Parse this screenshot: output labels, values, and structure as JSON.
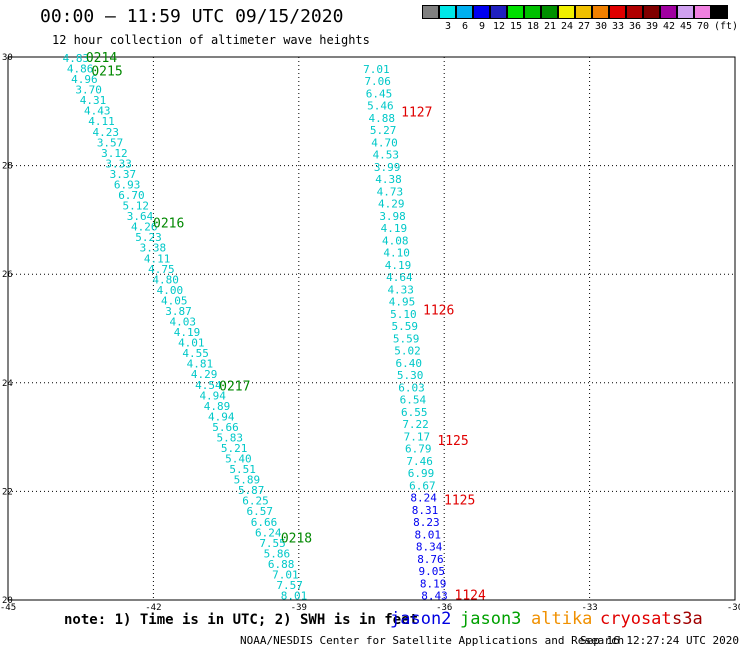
{
  "header": {
    "title": "00:00 – 11:59 UTC 09/15/2020",
    "subtitle": "12 hour collection of altimeter wave heights"
  },
  "color_scale": {
    "unit": "(ft)",
    "swatches": [
      {
        "label": "",
        "color": "#808080"
      },
      {
        "label": "3",
        "color": "#00e8e8"
      },
      {
        "label": "6",
        "color": "#00b0f0"
      },
      {
        "label": "9",
        "color": "#0000f0"
      },
      {
        "label": "12",
        "color": "#2020c0"
      },
      {
        "label": "15",
        "color": "#00e000"
      },
      {
        "label": "18",
        "color": "#00c000"
      },
      {
        "label": "21",
        "color": "#009000"
      },
      {
        "label": "24",
        "color": "#f0f000"
      },
      {
        "label": "27",
        "color": "#f0c000"
      },
      {
        "label": "30",
        "color": "#f08000"
      },
      {
        "label": "33",
        "color": "#e00000"
      },
      {
        "label": "36",
        "color": "#b00000"
      },
      {
        "label": "39",
        "color": "#800000"
      },
      {
        "label": "42",
        "color": "#a000a0"
      },
      {
        "label": "45",
        "color": "#d0a0f0"
      },
      {
        "label": "70",
        "color": "#f080e0"
      },
      {
        "label": "",
        "color": "#000000"
      }
    ]
  },
  "map": {
    "lon_range": [
      -45,
      -30
    ],
    "lat_range": [
      20,
      30
    ],
    "x_ticks": [
      "-45",
      "-42",
      "-39",
      "-36",
      "-33",
      "-30"
    ],
    "y_ticks": [
      "30",
      "28",
      "26",
      "24",
      "22",
      "20"
    ],
    "track_colors": {
      "jason3": "#00c8c8",
      "jason2": "#0000f0",
      "jason3_label": "#008800",
      "cryosat": "#e00000"
    }
  },
  "tracks": [
    {
      "name": "jason3-descending",
      "lat_start": 30.0,
      "lat_end": 20.1,
      "lon_start": -43.6,
      "lon_end": -39.1,
      "values": [
        "4.83",
        "4.86",
        "4.96",
        "3.70",
        "4.31",
        "4.43",
        "4.11",
        "4.23",
        "3.57",
        "3.12",
        "3.33",
        "3.37",
        "6.93",
        "6.70",
        "5.12",
        "3.64",
        "4.26",
        "5.23",
        "3.38",
        "4.11",
        "4.75",
        "4.80",
        "4.00",
        "4.05",
        "3.87",
        "4.03",
        "4.19",
        "4.01",
        "4.55",
        "4.81",
        "4.29",
        "4.54",
        "4.94",
        "4.89",
        "4.94",
        "5.66",
        "5.83",
        "5.21",
        "5.40",
        "5.51",
        "5.89",
        "5.87",
        "6.25",
        "6.57",
        "6.66",
        "6.24",
        "7.55",
        "5.86",
        "6.88",
        "7.01",
        "7.57",
        "8.01"
      ],
      "time_labels": [
        {
          "text": "0214",
          "lat": 30.0
        },
        {
          "text": "0215",
          "lat": 29.75
        },
        {
          "text": "0216",
          "lat": 26.95
        },
        {
          "text": "0217",
          "lat": 23.95
        },
        {
          "text": "0218",
          "lat": 21.15
        }
      ]
    },
    {
      "name": "cryosat-ascending",
      "lat_start": 29.8,
      "lat_end": 20.1,
      "lon_start": -37.4,
      "lon_end": -36.2,
      "values": [
        "7.01",
        "7.06",
        "6.45",
        "5.46",
        "4.88",
        "5.27",
        "4.70",
        "4.53",
        "3.99",
        "4.38",
        "4.73",
        "4.29",
        "3.98",
        "4.19",
        "4.08",
        "4.10",
        "4.19",
        "4.64",
        "4.33",
        "4.95",
        "5.10",
        "5.59",
        "5.59",
        "5.02",
        "6.40",
        "5.30",
        "6.03",
        "6.54",
        "6.55",
        "7.22",
        "7.17",
        "6.79",
        "7.46",
        "6.99",
        "6.67",
        "8.24",
        "8.31",
        "8.23",
        "8.01",
        "8.34",
        "8.76",
        "9.05",
        "8.19",
        "8.43"
      ],
      "time_labels": [
        {
          "text": "1127",
          "lat": 29.0
        },
        {
          "text": "1126",
          "lat": 25.35
        },
        {
          "text": "1125",
          "lat": 22.95
        },
        {
          "text": "1125",
          "lat": 21.85
        },
        {
          "text": "1124",
          "lat": 20.1
        }
      ]
    }
  ],
  "footer": {
    "note": "note: 1) Time is in UTC; 2) SWH is in feet",
    "satellites": [
      {
        "label": "jason2",
        "color": "#0000e0"
      },
      {
        "label": "jason3",
        "color": "#00a000"
      },
      {
        "label": "altika",
        "color": "#f09000"
      },
      {
        "label": "cryosat",
        "color": "#e00000"
      },
      {
        "label": "s3a",
        "color": "#a00000"
      }
    ],
    "credit": "NOAA/NESDIS Center for Satellite Applications and Research",
    "timestamp": "Sep 16 12:27:24 UTC 2020"
  }
}
